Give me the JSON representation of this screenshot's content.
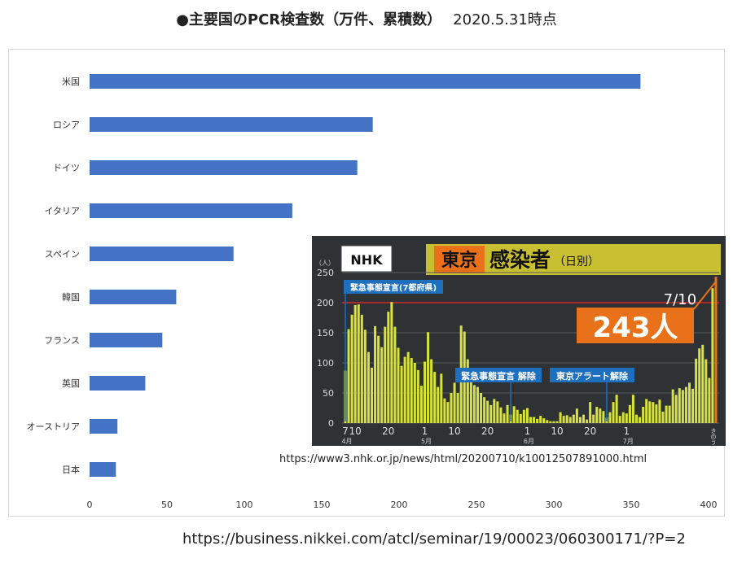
{
  "title": "●主要国のPCR検査数（万件、累積数）",
  "date_stamp": "2020.5.31時点",
  "colors": {
    "bar": "#4472c4",
    "inset_bg": "#2f3235",
    "inset_bar": "#d7e23b",
    "nhk_orange": "#e8711a",
    "banner_olive": "#c9bf32",
    "label_blue": "#1f6fbf"
  },
  "chart_data": [
    {
      "type": "bar",
      "orientation": "horizontal",
      "categories": [
        "米国",
        "ロシア",
        "ドイツ",
        "イタリア",
        "スペイン",
        "韓国",
        "フランス",
        "英国",
        "オーストリア",
        "日本"
      ],
      "values": [
        356,
        183,
        173,
        131,
        93,
        56,
        47,
        36,
        18,
        17
      ],
      "xlim": [
        0,
        400
      ],
      "xticks": [
        "0",
        "50",
        "100",
        "150",
        "200",
        "250",
        "300",
        "350",
        "400"
      ],
      "grid": false,
      "legend": "none"
    },
    {
      "type": "bar",
      "banner": {
        "logo": "NHK",
        "place": "東京",
        "subject": "感染者",
        "note": "（日別）"
      },
      "yunit": "（人）",
      "yticks": [
        "0",
        "50",
        "100",
        "150",
        "200",
        "250"
      ],
      "ylim": [
        0,
        250
      ],
      "reference_line": 200,
      "xticks": [
        "7",
        "10",
        "20",
        "1",
        "10",
        "20",
        "1",
        "10",
        "20",
        "1",
        "きのう"
      ],
      "month_labels": [
        "4月",
        "5月",
        "6月",
        "7月"
      ],
      "annotations": [
        "緊急事態宣言(7都府県)",
        "緊急事態宣言 解除",
        "東京アラート解除"
      ],
      "latest_date": "7/10",
      "latest_value": "243人",
      "values": [
        87,
        156,
        180,
        196,
        197,
        180,
        155,
        118,
        92,
        161,
        145,
        126,
        160,
        185,
        201,
        160,
        125,
        95,
        110,
        118,
        108,
        100,
        88,
        62,
        102,
        151,
        106,
        85,
        60,
        82,
        41,
        35,
        50,
        67,
        50,
        162,
        152,
        106,
        89,
        63,
        60,
        50,
        43,
        37,
        30,
        40,
        36,
        26,
        16,
        30,
        14,
        28,
        22,
        15,
        22,
        25,
        10,
        10,
        7,
        12,
        8,
        5,
        3,
        3,
        3,
        18,
        12,
        13,
        10,
        14,
        24,
        10,
        14,
        6,
        35,
        14,
        27,
        24,
        20,
        9,
        18,
        35,
        47,
        12,
        18,
        16,
        30,
        47,
        14,
        10,
        27,
        40,
        36,
        35,
        31,
        39,
        19,
        29,
        29,
        56,
        47,
        58,
        55,
        60,
        67,
        57,
        107,
        124,
        130,
        106,
        75,
        224,
        243
      ]
    }
  ],
  "nhk_source": "https://www3.nhk.or.jp/news/html/20200710/k10012507891000.html",
  "source_url": "https://business.nikkei.com/atcl/seminar/19/00023/060300171/?P=2"
}
